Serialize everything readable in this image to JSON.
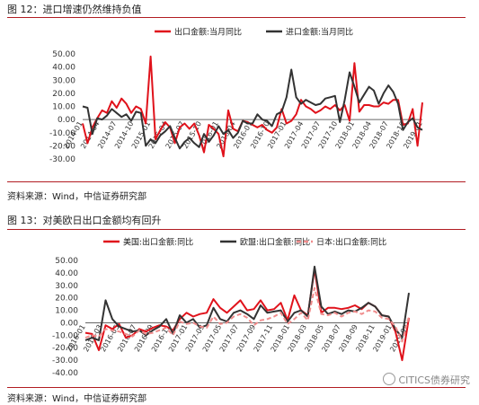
{
  "figures": [
    {
      "title": "图 12：进口增速仍然维持负值",
      "source": "资料来源：Wind，中信证券研究部"
    },
    {
      "title": "图 13：对美欧日出口金额均有回升",
      "source": "资料来源：Wind，中信证券研究部"
    }
  ],
  "watermark": "CITICS债券研究",
  "chart_data": [
    {
      "type": "line",
      "title": "",
      "xlabel": "",
      "ylabel": "",
      "ylim": [
        -30,
        50
      ],
      "yticks": [
        "50.00",
        "40.00",
        "30.00",
        "20.00",
        "10.00",
        "0.00",
        "-10.00",
        "-20.00",
        "-30.00"
      ],
      "xticks": [
        "2014-01",
        "2014-04",
        "2014-07",
        "2014-10",
        "2015-01",
        "2015-04",
        "2015-07",
        "2015-10",
        "2016-01",
        "2016-04",
        "2016-07",
        "2016-10",
        "2017-01",
        "2017-04",
        "2017-07",
        "2017-10",
        "2018-01",
        "2018-04",
        "2018-07",
        "2018-10",
        "2019-01"
      ],
      "legend": "top",
      "colors": [
        "#e0121b",
        "#333333"
      ],
      "series": [
        {
          "name": "出口金额:当月同比",
          "values": [
            -3,
            -18,
            -6,
            1,
            7,
            5,
            14,
            9,
            16,
            12,
            5,
            10,
            8,
            -3,
            48,
            -15,
            -8,
            -2,
            -6,
            -18,
            -6,
            -3,
            -7,
            -3,
            -12,
            -25,
            -4,
            -7,
            -11,
            -28,
            7,
            -7,
            -9,
            -1,
            -2,
            -4,
            -6,
            -4,
            -8,
            -10,
            -6,
            8,
            -3,
            -1,
            4,
            15,
            10,
            8,
            5,
            7,
            10,
            8,
            11,
            7,
            11,
            -1,
            43,
            6,
            11,
            11,
            10,
            10,
            13,
            12,
            15,
            15,
            -4,
            -3,
            8,
            -20,
            13
          ]
        },
        {
          "name": "进口金额:当月同比",
          "values": [
            10,
            9,
            -11,
            1,
            0,
            3,
            8,
            5,
            2,
            4,
            -1,
            6,
            5,
            -20,
            -15,
            -18,
            -12,
            -9,
            -5,
            -14,
            -22,
            -17,
            -14,
            -18,
            -21,
            -11,
            -17,
            -12,
            -5,
            -11,
            -8,
            -14,
            -10,
            -1,
            -3,
            -3,
            4,
            0,
            -1,
            -5,
            4,
            6,
            17,
            38,
            17,
            12,
            15,
            13,
            11,
            12,
            16,
            17,
            18,
            -2,
            15,
            36,
            25,
            13,
            19,
            25,
            22,
            12,
            20,
            26,
            21,
            12,
            -8,
            -2,
            1,
            -6,
            -8
          ]
        }
      ]
    },
    {
      "type": "line",
      "title": "",
      "xlabel": "",
      "ylabel": "",
      "ylim": [
        -40,
        50
      ],
      "yticks": [
        "50.00",
        "40.00",
        "30.00",
        "20.00",
        "10.00",
        "0.00",
        "-10.00",
        "-20.00",
        "-30.00",
        "-40.00"
      ],
      "xticks": [
        "2016-01",
        "2016-03",
        "2016-05",
        "2016-07",
        "2016-09",
        "2016-11",
        "2017-01",
        "2017-03",
        "2017-05",
        "2017-07",
        "2017-09",
        "2017-11",
        "2018-01",
        "2018-03",
        "2018-05",
        "2018-07",
        "2018-09",
        "2018-11",
        "2019-01",
        "2019-03"
      ],
      "legend": "top",
      "colors": [
        "#e0121b",
        "#333333",
        "#f08c8c"
      ],
      "series": [
        {
          "name": "美国:出口金额:同比",
          "values": [
            -8,
            -9,
            -22,
            -2,
            -5,
            -1,
            -12,
            -10,
            -5,
            -7,
            -4,
            -2,
            -3,
            -6,
            3,
            8,
            5,
            7,
            8,
            19,
            12,
            8,
            13,
            18,
            10,
            11,
            18,
            10,
            11,
            16,
            2,
            22,
            10,
            6,
            43,
            8,
            12,
            12,
            11,
            12,
            14,
            11,
            16,
            13,
            6,
            5,
            -7,
            -30,
            4
          ]
        },
        {
          "name": "欧盟:出口金额:同比",
          "values": [
            -14,
            -12,
            -14,
            18,
            3,
            -3,
            -5,
            -7,
            -6,
            -10,
            -6,
            -3,
            3,
            -9,
            6,
            0,
            3,
            -4,
            -2,
            12,
            3,
            1,
            8,
            10,
            7,
            3,
            14,
            8,
            9,
            10,
            1,
            8,
            10,
            5,
            45,
            13,
            7,
            9,
            7,
            10,
            9,
            12,
            16,
            13,
            6,
            5,
            -5,
            -12,
            24
          ]
        },
        {
          "name": "日本:出口金额:同比",
          "values": [
            -12,
            -10,
            -11,
            -5,
            -6,
            -7,
            -9,
            -11,
            -6,
            -9,
            -8,
            -6,
            -4,
            -10,
            1,
            -1,
            0,
            -3,
            -4,
            5,
            -1,
            0,
            5,
            7,
            4,
            -2,
            2,
            3,
            5,
            8,
            -1,
            3,
            8,
            2,
            28,
            7,
            6,
            8,
            5,
            8,
            9,
            7,
            10,
            9,
            4,
            3,
            -3,
            -15,
            5
          ]
        }
      ]
    }
  ]
}
